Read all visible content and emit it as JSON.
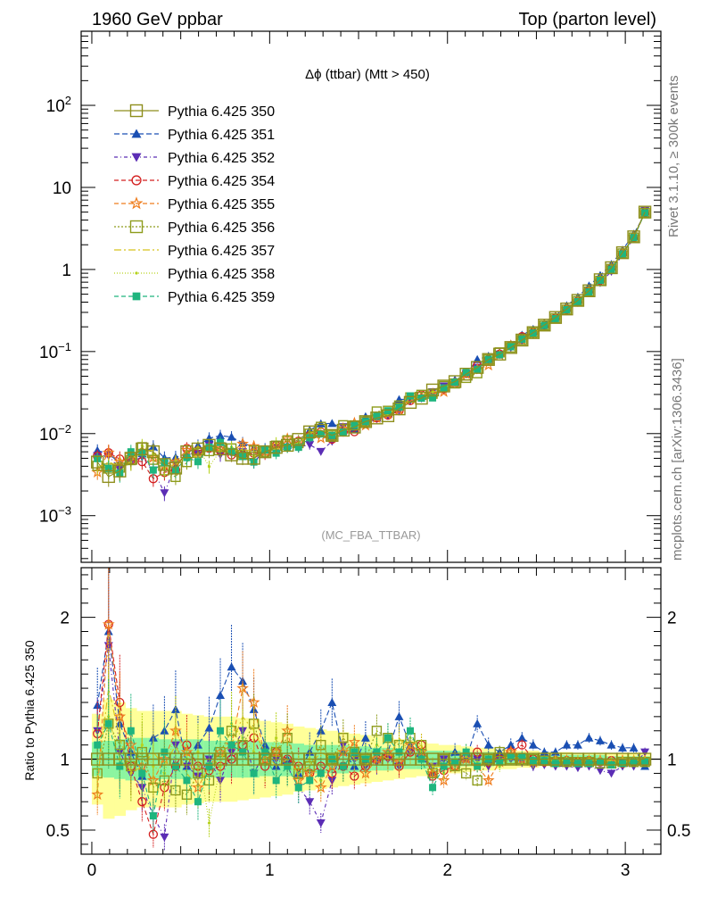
{
  "header": {
    "left": "1960 GeV ppbar",
    "right": "Top (parton level)"
  },
  "side": {
    "upper": "Rivet 3.1.10, ≥ 300k events",
    "lower": "mcplots.cern.ch [arXiv:1306.3436]"
  },
  "watermark": "(MC_FBA_TTBAR)",
  "chart_data": {
    "type": "line",
    "title": "Δϕ (ttbar) (Mtt > 450)",
    "xlabel": "",
    "ylabel_ratio": "Ratio to Pythia 6.425 350",
    "xlim": [
      -0.06,
      3.2
    ],
    "ylim_main": [
      0.00027,
      800
    ],
    "ylim_ratio": [
      0.33,
      2.35
    ],
    "log_y_main": true,
    "x_ticks": [
      "0",
      "1",
      "2",
      "3"
    ],
    "y_ticks_main": [
      {
        "base": "10",
        "exp": "2"
      },
      {
        "base": "10",
        "exp": ""
      },
      {
        "base": "1",
        "exp": ""
      },
      {
        "base": "10",
        "exp": "−1"
      },
      {
        "base": "10",
        "exp": "−2"
      },
      {
        "base": "10",
        "exp": "−3"
      }
    ],
    "y_ticks_ratio": [
      "2",
      "1",
      "0.5"
    ],
    "x": [
      0.0314,
      0.0942,
      0.1571,
      0.2199,
      0.2827,
      0.3456,
      0.4084,
      0.4712,
      0.5341,
      0.5969,
      0.6597,
      0.7226,
      0.7854,
      0.8482,
      0.9111,
      0.9739,
      1.0367,
      1.0996,
      1.1624,
      1.2252,
      1.2881,
      1.3509,
      1.4137,
      1.4765,
      1.5394,
      1.6022,
      1.665,
      1.7279,
      1.7907,
      1.8535,
      1.9164,
      1.9792,
      2.042,
      2.1049,
      2.1677,
      2.2305,
      2.2934,
      2.3562,
      2.419,
      2.4819,
      2.5447,
      2.6075,
      2.6704,
      2.7332,
      2.796,
      2.8588,
      2.9217,
      2.9845,
      3.0473,
      3.1102
    ],
    "reference": [
      0.0045,
      0.003,
      0.0035,
      0.005,
      0.0065,
      0.006,
      0.0042,
      0.0038,
      0.006,
      0.0065,
      0.0072,
      0.0065,
      0.0055,
      0.005,
      0.005,
      0.006,
      0.0068,
      0.0072,
      0.0085,
      0.0105,
      0.011,
      0.0095,
      0.011,
      0.012,
      0.014,
      0.0155,
      0.0165,
      0.02,
      0.024,
      0.027,
      0.034,
      0.038,
      0.043,
      0.053,
      0.064,
      0.08,
      0.093,
      0.112,
      0.138,
      0.17,
      0.21,
      0.26,
      0.33,
      0.42,
      0.55,
      0.75,
      1.05,
      1.6,
      2.5,
      5.0
    ],
    "band_green": [
      0.12,
      0.13,
      0.14,
      0.15,
      0.15,
      0.15,
      0.14,
      0.14,
      0.14,
      0.14,
      0.13,
      0.13,
      0.13,
      0.13,
      0.13,
      0.12,
      0.12,
      0.12,
      0.11,
      0.1,
      0.1,
      0.1,
      0.1,
      0.09,
      0.09,
      0.08,
      0.08,
      0.07,
      0.07,
      0.07,
      0.06,
      0.06,
      0.06,
      0.05,
      0.05,
      0.05,
      0.04,
      0.04,
      0.04,
      0.04,
      0.03,
      0.03,
      0.03,
      0.03,
      0.03,
      0.03,
      0.02,
      0.02,
      0.02,
      0.02
    ],
    "band_yellow": [
      0.32,
      0.42,
      0.4,
      0.36,
      0.34,
      0.34,
      0.34,
      0.34,
      0.32,
      0.31,
      0.3,
      0.3,
      0.3,
      0.29,
      0.28,
      0.27,
      0.26,
      0.25,
      0.23,
      0.22,
      0.21,
      0.2,
      0.19,
      0.18,
      0.17,
      0.16,
      0.15,
      0.14,
      0.13,
      0.12,
      0.11,
      0.1,
      0.1,
      0.09,
      0.08,
      0.08,
      0.07,
      0.07,
      0.06,
      0.06,
      0.05,
      0.05,
      0.05,
      0.04,
      0.04,
      0.04,
      0.04,
      0.04,
      0.04,
      0.04
    ],
    "series": [
      {
        "name": "Pythia 6.425 350",
        "color": "#8e8e1c",
        "marker": "open-square",
        "dash": "",
        "ratio": [
          1,
          1,
          1,
          1,
          1,
          1,
          1,
          1,
          1,
          1,
          1,
          1,
          1,
          1,
          1,
          1,
          1,
          1,
          1,
          1,
          1,
          1,
          1,
          1,
          1,
          1,
          1,
          1,
          1,
          1,
          1,
          1,
          1,
          1,
          1,
          1,
          1,
          1,
          1,
          1,
          1,
          1,
          1,
          1,
          1,
          1,
          1,
          1,
          1,
          1
        ]
      },
      {
        "name": "Pythia 6.425 351",
        "color": "#1a4fb3",
        "marker": "triangle-up",
        "dash": "6,3",
        "ratio": [
          1.38,
          1.9,
          1.25,
          1.05,
          0.88,
          1.15,
          1.2,
          1.35,
          0.95,
          1.1,
          1.22,
          1.45,
          1.65,
          1.55,
          1.35,
          1.1,
          0.95,
          1.0,
          0.9,
          1.05,
          1.2,
          1.4,
          1.05,
          0.95,
          1.15,
          1.0,
          1.05,
          1.3,
          1.1,
          1.05,
          0.9,
          0.95,
          1.05,
          1.0,
          1.25,
          1.1,
          1.05,
          1.1,
          1.15,
          1.1,
          1.05,
          1.05,
          1.1,
          1.1,
          1.15,
          1.13,
          1.1,
          1.08,
          1.08,
          0.95
        ]
      },
      {
        "name": "Pythia 6.425 352",
        "color": "#5b2db5",
        "marker": "triangle-down",
        "dash": "4,3,1,3",
        "ratio": [
          1.2,
          1.8,
          1.05,
          0.9,
          0.8,
          0.6,
          0.45,
          1.1,
          0.95,
          0.88,
          1.0,
          0.85,
          1.05,
          1.2,
          0.9,
          1.05,
          1.0,
          0.95,
          0.8,
          0.7,
          0.55,
          0.85,
          1.1,
          1.0,
          0.95,
          0.98,
          1.0,
          0.95,
          1.05,
          1.0,
          0.95,
          1.0,
          0.98,
          1.02,
          1.0,
          0.95,
          1.0,
          1.0,
          0.98,
          0.95,
          0.96,
          0.95,
          0.95,
          0.94,
          0.95,
          0.92,
          0.9,
          0.95,
          0.95,
          1.05
        ]
      },
      {
        "name": "Pythia 6.425 354",
        "color": "#d42020",
        "marker": "open-circle",
        "dash": "5,3",
        "ratio": [
          1.18,
          1.95,
          1.4,
          0.95,
          0.7,
          0.47,
          0.8,
          0.95,
          1.1,
          0.95,
          0.92,
          0.95,
          1.0,
          1.1,
          1.15,
          0.95,
          1.05,
          1.0,
          0.95,
          0.9,
          0.95,
          0.9,
          0.95,
          0.88,
          0.95,
          1.0,
          1.02,
          0.95,
          1.05,
          1.1,
          0.88,
          0.92,
          0.95,
          1.02,
          1.05,
          0.98,
          1.0,
          1.05,
          1.1,
          1.0,
          0.98,
          0.99,
          0.99,
          0.98,
          0.99,
          0.98,
          0.99,
          0.97,
          0.98,
          0.98
        ]
      },
      {
        "name": "Pythia 6.425 355",
        "color": "#ef7d1e",
        "marker": "open-star",
        "dash": "5,3",
        "ratio": [
          0.75,
          1.95,
          1.3,
          1.1,
          0.95,
          0.85,
          1.0,
          1.2,
          1.05,
          0.8,
          0.95,
          1.05,
          1.1,
          1.5,
          1.4,
          1.0,
          1.05,
          1.2,
          0.85,
          0.9,
          0.8,
          0.95,
          1.05,
          1.12,
          0.9,
          1.0,
          1.05,
          0.98,
          1.1,
          1.05,
          0.9,
          0.85,
          0.95,
          1.0,
          0.95,
          0.85,
          0.98,
          1.05,
          1.0,
          0.98,
          0.99,
          0.99,
          0.99,
          0.98,
          0.99,
          0.99,
          0.98,
          0.99,
          0.99,
          0.99
        ]
      },
      {
        "name": "Pythia 6.425 356",
        "color": "#8e9c1c",
        "marker": "open-square",
        "dash": "2,2",
        "ratio": [
          0.9,
          1.25,
          1.1,
          0.95,
          1.05,
          0.8,
          0.85,
          0.78,
          0.75,
          0.9,
          0.85,
          1.05,
          1.2,
          1.1,
          1.25,
          1.0,
          1.05,
          1.15,
          0.9,
          0.95,
          1.1,
          1.0,
          1.15,
          1.05,
          1.0,
          1.2,
          1.15,
          1.1,
          1.15,
          1.1,
          0.9,
          1.0,
          0.95,
          0.9,
          0.85,
          1.0,
          1.05,
          1.0,
          1.0,
          1.0,
          0.99,
          0.98,
          0.98,
          0.98,
          0.98,
          0.97,
          0.97,
          0.98,
          0.98,
          0.98
        ]
      },
      {
        "name": "Pythia 6.425 357",
        "color": "#d6c21c",
        "marker": "none",
        "dash": "8,3,2,3",
        "ratio": [
          0.85,
          1.5,
          1.15,
          0.9,
          0.95,
          1.05,
          0.95,
          1.1,
          0.9,
          0.8,
          0.95,
          1.0,
          1.1,
          1.3,
          1.2,
          1.05,
          0.95,
          1.0,
          0.9,
          0.95,
          1.05,
          1.0,
          1.1,
          1.0,
          0.95,
          1.05,
          1.0,
          1.15,
          1.05,
          1.1,
          0.95,
          0.95,
          1.0,
          1.05,
          0.95,
          1.0,
          1.0,
          1.02,
          1.0,
          0.98,
          0.99,
          1.0,
          0.99,
          1.0,
          1.0,
          0.99,
          0.99,
          0.99,
          1.0,
          0.99
        ]
      },
      {
        "name": "Pythia 6.425 358",
        "color": "#b6d21c",
        "marker": "dot",
        "dash": "1,2",
        "ratio": [
          1.1,
          1.3,
          1.0,
          0.9,
          1.1,
          0.95,
          0.9,
          1.2,
          1.0,
          1.05,
          0.55,
          0.95,
          1.25,
          1.15,
          1.05,
          1.0,
          1.15,
          0.95,
          0.9,
          1.0,
          0.85,
          1.0,
          0.95,
          1.05,
          1.0,
          1.1,
          1.05,
          1.0,
          1.15,
          1.05,
          0.95,
          0.9,
          1.0,
          1.02,
          0.98,
          1.0,
          0.95,
          1.0,
          1.0,
          0.97,
          0.98,
          0.99,
          0.99,
          0.98,
          0.98,
          0.98,
          0.98,
          0.98,
          0.98,
          0.98
        ]
      },
      {
        "name": "Pythia 6.425 359",
        "color": "#1fb57e",
        "marker": "filled-square",
        "dash": "5,3",
        "ratio": [
          1.1,
          1.25,
          0.95,
          1.2,
          0.9,
          0.6,
          1.05,
          0.95,
          0.85,
          0.7,
          0.95,
          1.2,
          1.1,
          1.05,
          0.9,
          1.05,
          0.85,
          0.95,
          0.8,
          0.85,
          0.9,
          1.0,
          0.95,
          1.05,
          1.0,
          1.05,
          1.15,
          1.05,
          1.2,
          1.0,
          0.8,
          0.95,
          0.98,
          1.05,
          0.95,
          1.0,
          0.98,
          1.02,
          1.02,
          0.99,
          0.99,
          0.97,
          0.98,
          0.97,
          0.97,
          0.98,
          0.96,
          0.97,
          0.98,
          0.98
        ]
      }
    ]
  }
}
